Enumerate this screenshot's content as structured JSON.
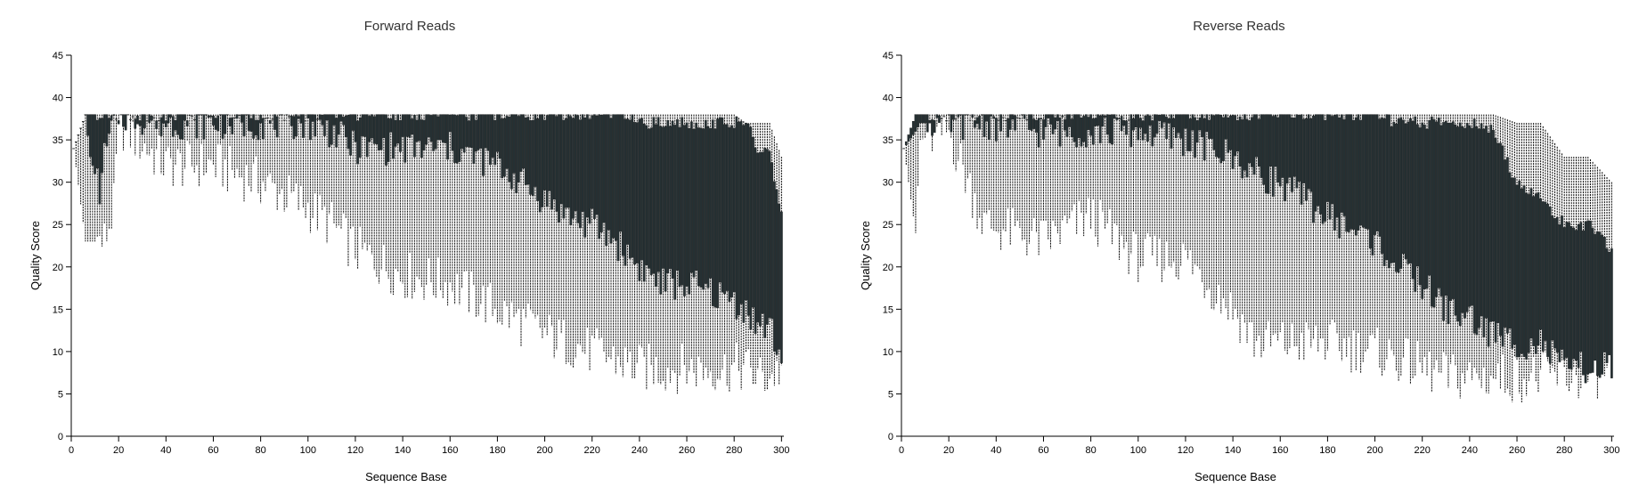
{
  "chart_data": [
    {
      "type": "box",
      "title": "Forward Reads",
      "xlabel": "Sequence Base",
      "ylabel": "Quality Score",
      "xlim": [
        0,
        301
      ],
      "ylim": [
        0,
        45
      ],
      "x_ticks": [
        0,
        20,
        40,
        60,
        80,
        100,
        120,
        140,
        160,
        180,
        200,
        220,
        240,
        260,
        280,
        300
      ],
      "y_ticks": [
        0,
        5,
        10,
        15,
        20,
        25,
        30,
        35,
        40,
        45
      ],
      "keypoints": [
        {
          "base": 1,
          "whisker_low": 34,
          "q1": 34,
          "median": 34,
          "q3": 34,
          "whisker_high": 34
        },
        {
          "base": 6,
          "whisker_low": 23,
          "q1": 38,
          "median": 38,
          "q3": 38,
          "whisker_high": 38
        },
        {
          "base": 8,
          "whisker_low": 23,
          "q1": 33,
          "median": 37,
          "q3": 38,
          "whisker_high": 38
        },
        {
          "base": 12,
          "whisker_low": 23,
          "q1": 29,
          "median": 35,
          "q3": 38,
          "whisker_high": 38
        },
        {
          "base": 14,
          "whisker_low": 23,
          "q1": 33,
          "median": 36,
          "q3": 38,
          "whisker_high": 38
        },
        {
          "base": 18,
          "whisker_low": 27,
          "q1": 37,
          "median": 38,
          "q3": 38,
          "whisker_high": 38
        },
        {
          "base": 20,
          "whisker_low": 37,
          "q1": 38,
          "median": 38,
          "q3": 38,
          "whisker_high": 38
        },
        {
          "base": 40,
          "whisker_low": 32,
          "q1": 37,
          "median": 38,
          "q3": 38,
          "whisker_high": 38
        },
        {
          "base": 60,
          "whisker_low": 32,
          "q1": 37,
          "median": 38,
          "q3": 38,
          "whisker_high": 38
        },
        {
          "base": 80,
          "whisker_low": 30,
          "q1": 37,
          "median": 38,
          "q3": 38,
          "whisker_high": 38
        },
        {
          "base": 100,
          "whisker_low": 27,
          "q1": 37,
          "median": 38,
          "q3": 38,
          "whisker_high": 38
        },
        {
          "base": 110,
          "whisker_low": 25,
          "q1": 36,
          "median": 37,
          "q3": 38,
          "whisker_high": 38
        },
        {
          "base": 120,
          "whisker_low": 22,
          "q1": 34,
          "median": 36,
          "q3": 38,
          "whisker_high": 38
        },
        {
          "base": 140,
          "whisker_low": 19,
          "q1": 34,
          "median": 36,
          "q3": 38,
          "whisker_high": 38
        },
        {
          "base": 160,
          "whisker_low": 18,
          "q1": 34,
          "median": 36,
          "q3": 38,
          "whisker_high": 38
        },
        {
          "base": 180,
          "whisker_low": 15,
          "q1": 32,
          "median": 35,
          "q3": 38,
          "whisker_high": 38
        },
        {
          "base": 200,
          "whisker_low": 12,
          "q1": 28,
          "median": 34,
          "q3": 38,
          "whisker_high": 38
        },
        {
          "base": 210,
          "whisker_low": 11,
          "q1": 26,
          "median": 33,
          "q3": 38,
          "whisker_high": 38
        },
        {
          "base": 220,
          "whisker_low": 10,
          "q1": 25,
          "median": 33,
          "q3": 38,
          "whisker_high": 38
        },
        {
          "base": 230,
          "whisker_low": 9,
          "q1": 23,
          "median": 32,
          "q3": 38,
          "whisker_high": 38
        },
        {
          "base": 240,
          "whisker_low": 8,
          "q1": 20,
          "median": 31,
          "q3": 37,
          "whisker_high": 38
        },
        {
          "base": 250,
          "whisker_low": 8,
          "q1": 18,
          "median": 30,
          "q3": 37,
          "whisker_high": 38
        },
        {
          "base": 260,
          "whisker_low": 8,
          "q1": 18,
          "median": 30,
          "q3": 37,
          "whisker_high": 38
        },
        {
          "base": 270,
          "whisker_low": 8,
          "q1": 17,
          "median": 29,
          "q3": 37,
          "whisker_high": 38
        },
        {
          "base": 280,
          "whisker_low": 8,
          "q1": 16,
          "median": 28,
          "q3": 37,
          "whisker_high": 38
        },
        {
          "base": 285,
          "whisker_low": 8,
          "q1": 15,
          "median": 26,
          "q3": 37,
          "whisker_high": 37
        },
        {
          "base": 290,
          "whisker_low": 7,
          "q1": 13,
          "median": 24,
          "q3": 34,
          "whisker_high": 37
        },
        {
          "base": 295,
          "whisker_low": 7,
          "q1": 13,
          "median": 22,
          "q3": 33,
          "whisker_high": 37
        },
        {
          "base": 300,
          "whisker_low": 8,
          "q1": 9,
          "median": 18,
          "q3": 27,
          "whisker_high": 33
        }
      ]
    },
    {
      "type": "box",
      "title": "Reverse Reads",
      "xlabel": "Sequence Base",
      "ylabel": "Quality Score",
      "xlim": [
        0,
        301
      ],
      "ylim": [
        0,
        45
      ],
      "x_ticks": [
        0,
        20,
        40,
        60,
        80,
        100,
        120,
        140,
        160,
        180,
        200,
        220,
        240,
        260,
        280,
        300
      ],
      "y_ticks": [
        0,
        5,
        10,
        15,
        20,
        25,
        30,
        35,
        40,
        45
      ],
      "keypoints": [
        {
          "base": 1,
          "whisker_low": 34,
          "q1": 34,
          "median": 34,
          "q3": 34,
          "whisker_high": 34
        },
        {
          "base": 6,
          "whisker_low": 24,
          "q1": 36,
          "median": 38,
          "q3": 38,
          "whisker_high": 38
        },
        {
          "base": 8,
          "whisker_low": 35,
          "q1": 37,
          "median": 38,
          "q3": 38,
          "whisker_high": 38
        },
        {
          "base": 20,
          "whisker_low": 36,
          "q1": 37,
          "median": 38,
          "q3": 38,
          "whisker_high": 38
        },
        {
          "base": 35,
          "whisker_low": 25,
          "q1": 37,
          "median": 38,
          "q3": 38,
          "whisker_high": 38
        },
        {
          "base": 60,
          "whisker_low": 23,
          "q1": 36,
          "median": 38,
          "q3": 38,
          "whisker_high": 38
        },
        {
          "base": 80,
          "whisker_low": 26,
          "q1": 36,
          "median": 38,
          "q3": 38,
          "whisker_high": 38
        },
        {
          "base": 100,
          "whisker_low": 21,
          "q1": 36,
          "median": 38,
          "q3": 38,
          "whisker_high": 38
        },
        {
          "base": 120,
          "whisker_low": 21,
          "q1": 35,
          "median": 37,
          "q3": 38,
          "whisker_high": 38
        },
        {
          "base": 140,
          "whisker_low": 15,
          "q1": 33,
          "median": 37,
          "q3": 38,
          "whisker_high": 38
        },
        {
          "base": 150,
          "whisker_low": 11,
          "q1": 31,
          "median": 36,
          "q3": 38,
          "whisker_high": 38
        },
        {
          "base": 160,
          "whisker_low": 11,
          "q1": 30,
          "median": 36,
          "q3": 38,
          "whisker_high": 38
        },
        {
          "base": 180,
          "whisker_low": 11,
          "q1": 26,
          "median": 34,
          "q3": 38,
          "whisker_high": 38
        },
        {
          "base": 200,
          "whisker_low": 10,
          "q1": 23,
          "median": 33,
          "q3": 38,
          "whisker_high": 38
        },
        {
          "base": 210,
          "whisker_low": 9,
          "q1": 20,
          "median": 31,
          "q3": 37,
          "whisker_high": 38
        },
        {
          "base": 220,
          "whisker_low": 8,
          "q1": 18,
          "median": 30,
          "q3": 37,
          "whisker_high": 38
        },
        {
          "base": 230,
          "whisker_low": 7,
          "q1": 15,
          "median": 28,
          "q3": 37,
          "whisker_high": 38
        },
        {
          "base": 240,
          "whisker_low": 7,
          "q1": 14,
          "median": 26,
          "q3": 37,
          "whisker_high": 38
        },
        {
          "base": 250,
          "whisker_low": 7,
          "q1": 12,
          "median": 24,
          "q3": 36,
          "whisker_high": 38
        },
        {
          "base": 260,
          "whisker_low": 7,
          "q1": 11,
          "median": 22,
          "q3": 30,
          "whisker_high": 37
        },
        {
          "base": 270,
          "whisker_low": 7,
          "q1": 11,
          "median": 20,
          "q3": 28,
          "whisker_high": 37
        },
        {
          "base": 280,
          "whisker_low": 7,
          "q1": 8,
          "median": 16,
          "q3": 25,
          "whisker_high": 33
        },
        {
          "base": 290,
          "whisker_low": 7,
          "q1": 8,
          "median": 15,
          "q3": 25,
          "whisker_high": 33
        },
        {
          "base": 300,
          "whisker_low": 8,
          "q1": 8,
          "median": 14,
          "q3": 22,
          "whisker_high": 30
        }
      ]
    }
  ]
}
